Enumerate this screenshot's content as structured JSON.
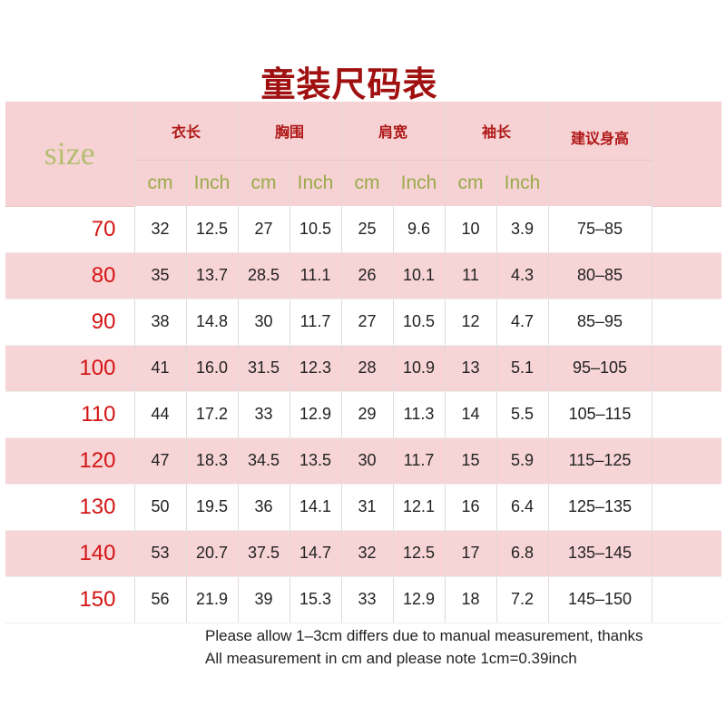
{
  "title": "童装尺码表",
  "header": {
    "size_label": "size",
    "groups": [
      "衣长",
      "胸围",
      "肩宽",
      "袖长"
    ],
    "height_label": "建议身高",
    "units": [
      "cm",
      "Inch",
      "cm",
      "Inch",
      "cm",
      "Inch",
      "cm",
      "Inch"
    ]
  },
  "rows": [
    {
      "size": "70",
      "values": [
        "32",
        "12.5",
        "27",
        "10.5",
        "25",
        "9.6",
        "10",
        "3.9"
      ],
      "height": "75–85"
    },
    {
      "size": "80",
      "values": [
        "35",
        "13.7",
        "28.5",
        "11.1",
        "26",
        "10.1",
        "11",
        "4.3"
      ],
      "height": "80–85"
    },
    {
      "size": "90",
      "values": [
        "38",
        "14.8",
        "30",
        "11.7",
        "27",
        "10.5",
        "12",
        "4.7"
      ],
      "height": "85–95"
    },
    {
      "size": "100",
      "values": [
        "41",
        "16.0",
        "31.5",
        "12.3",
        "28",
        "10.9",
        "13",
        "5.1"
      ],
      "height": "95–105"
    },
    {
      "size": "110",
      "values": [
        "44",
        "17.2",
        "33",
        "12.9",
        "29",
        "11.3",
        "14",
        "5.5"
      ],
      "height": "105–115"
    },
    {
      "size": "120",
      "values": [
        "47",
        "18.3",
        "34.5",
        "13.5",
        "30",
        "11.7",
        "15",
        "5.9"
      ],
      "height": "115–125"
    },
    {
      "size": "130",
      "values": [
        "50",
        "19.5",
        "36",
        "14.1",
        "31",
        "12.1",
        "16",
        "6.4"
      ],
      "height": "125–135"
    },
    {
      "size": "140",
      "values": [
        "53",
        "20.7",
        "37.5",
        "14.7",
        "32",
        "12.5",
        "17",
        "6.8"
      ],
      "height": "135–145"
    },
    {
      "size": "150",
      "values": [
        "56",
        "21.9",
        "39",
        "15.3",
        "33",
        "12.9",
        "18",
        "7.2"
      ],
      "height": "145–150"
    }
  ],
  "notes": [
    "Please allow 1–3cm differs due to manual measurement, thanks",
    "All measurement in cm and please note 1cm=0.39inch"
  ],
  "colors": {
    "title": "#a01010",
    "header_bg": "#f6d2d4",
    "size_text": "#d41414",
    "unit_text": "#9aaa4a"
  }
}
